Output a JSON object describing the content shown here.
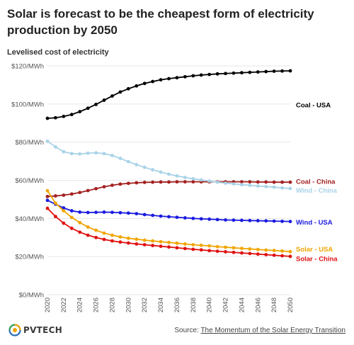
{
  "title": "Solar is forecast to be the cheapest form of electricity production by 2050",
  "subtitle": "Levelised cost of electricity",
  "footer": {
    "logo_text": "PVTECH",
    "source_prefix": "Source: ",
    "source_link": "The Momentum of the Solar Energy Transition"
  },
  "chart_data": {
    "type": "line",
    "title": "Solar is forecast to be the cheapest form of electricity production by 2050",
    "subtitle": "Levelised cost of electricity",
    "xlabel": "",
    "ylabel": "",
    "x": [
      2020,
      2021,
      2022,
      2023,
      2024,
      2025,
      2026,
      2027,
      2028,
      2029,
      2030,
      2031,
      2032,
      2033,
      2034,
      2035,
      2036,
      2037,
      2038,
      2039,
      2040,
      2041,
      2042,
      2043,
      2044,
      2045,
      2046,
      2047,
      2048,
      2049,
      2050
    ],
    "x_ticks": [
      "2020",
      "2022",
      "2024",
      "2026",
      "2028",
      "2030",
      "2032",
      "2034",
      "2036",
      "2038",
      "2040",
      "2042",
      "2044",
      "2046",
      "2048",
      "2050"
    ],
    "y_ticks": [
      "$0/MWh",
      "$20/MWh",
      "$40/MWh",
      "$60/MWh",
      "$80/MWh",
      "$100/MWh",
      "$120/MWh"
    ],
    "ylim": [
      0,
      120
    ],
    "grid": "horizontal",
    "legend": "inline labels at right",
    "series": [
      {
        "name": "Coal - USA",
        "color": "#000000",
        "values": [
          92.5,
          92.8,
          93.5,
          94.5,
          96,
          97.8,
          99.8,
          102,
          104.2,
          106.3,
          108,
          109.5,
          110.8,
          111.8,
          112.7,
          113.3,
          113.8,
          114.3,
          114.8,
          115.2,
          115.5,
          115.8,
          116,
          116.2,
          116.4,
          116.6,
          116.8,
          117,
          117.2,
          117.3,
          117.4
        ]
      },
      {
        "name": "Coal - China",
        "color": "#a31f1f",
        "values": [
          51.5,
          51.8,
          52.2,
          52.8,
          53.6,
          54.6,
          55.6,
          56.6,
          57.4,
          58,
          58.4,
          58.7,
          58.9,
          59,
          59.1,
          59.1,
          59.2,
          59.2,
          59.2,
          59.2,
          59.2,
          59.2,
          59.2,
          59.2,
          59.2,
          59.2,
          59.1,
          59.1,
          59,
          59,
          59
        ]
      },
      {
        "name": "Wind - China",
        "color": "#a8d3e8",
        "values": [
          80.5,
          77.5,
          75,
          74,
          73.8,
          74.2,
          74.4,
          74,
          73,
          71.5,
          69.8,
          68.2,
          66.8,
          65.5,
          64.3,
          63.2,
          62.3,
          61.5,
          60.8,
          60.2,
          59.6,
          59,
          58.5,
          58.1,
          57.7,
          57.4,
          57,
          56.7,
          56.4,
          56,
          55.7
        ]
      },
      {
        "name": "Wind - USA",
        "color": "#1a1ae0",
        "values": [
          49.5,
          47.5,
          45.5,
          44,
          43.3,
          43.1,
          43.2,
          43.3,
          43.2,
          43,
          42.8,
          42.5,
          42,
          41.6,
          41.2,
          40.9,
          40.6,
          40.3,
          40,
          39.8,
          39.6,
          39.4,
          39.2,
          39.1,
          39,
          38.9,
          38.8,
          38.7,
          38.6,
          38.5,
          38.4
        ]
      },
      {
        "name": "Solar - USA",
        "color": "#f0a500",
        "values": [
          54.5,
          48,
          44,
          40.5,
          37.8,
          35.5,
          33.8,
          32.3,
          31.2,
          30.3,
          29.6,
          29.1,
          28.6,
          28.2,
          27.8,
          27.4,
          27,
          26.6,
          26.2,
          25.9,
          25.6,
          25.2,
          24.9,
          24.6,
          24.3,
          24,
          23.7,
          23.4,
          23.2,
          22.9,
          22.6
        ]
      },
      {
        "name": "Solar - China",
        "color": "#e01010",
        "values": [
          45.3,
          41,
          37.5,
          34.8,
          32.8,
          31.2,
          30,
          29,
          28.2,
          27.6,
          27.1,
          26.6,
          26.2,
          25.8,
          25.4,
          25,
          24.6,
          24.2,
          23.8,
          23.5,
          23.1,
          22.8,
          22.5,
          22.2,
          21.9,
          21.6,
          21.3,
          21,
          20.7,
          20.4,
          20.1
        ]
      }
    ]
  }
}
